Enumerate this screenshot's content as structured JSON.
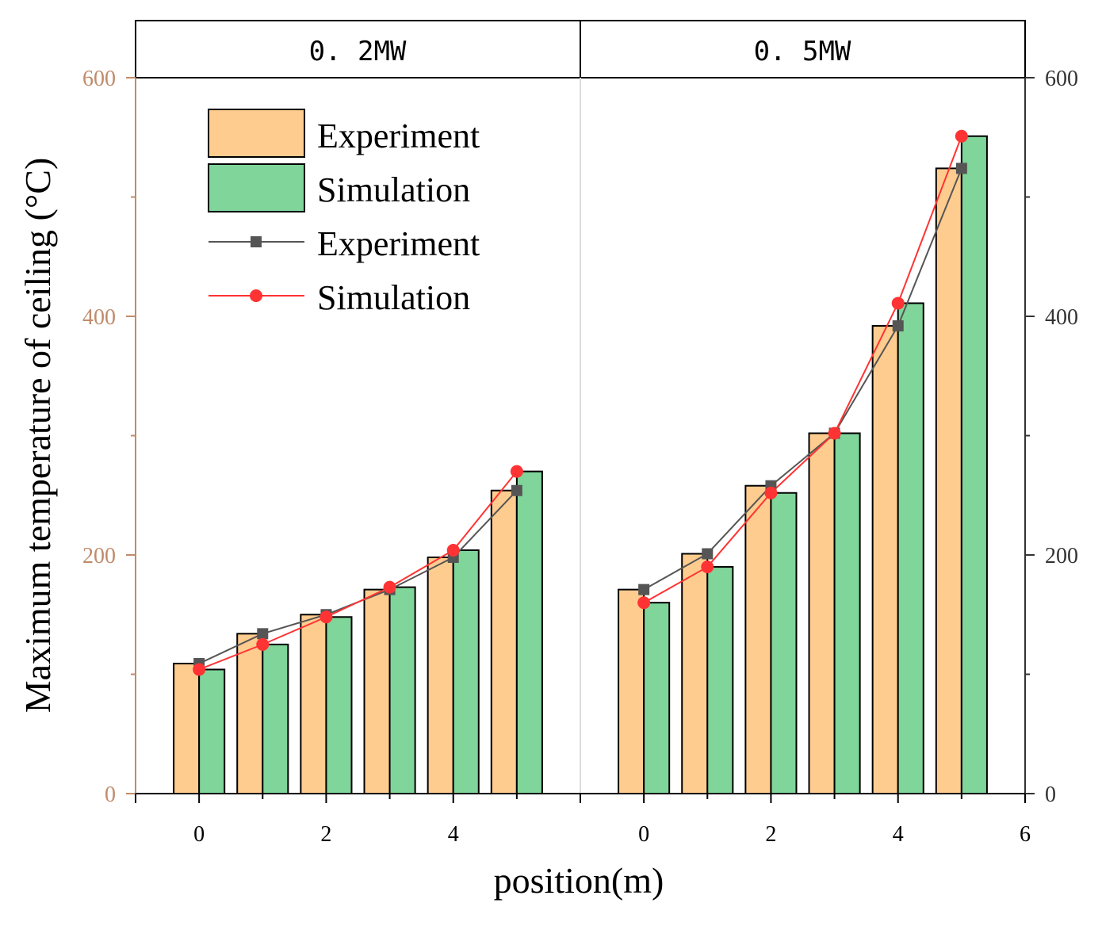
{
  "colors": {
    "experiment_bar": "#FFCC8F",
    "simulation_bar": "#7FD59A",
    "experiment_line": "#555555",
    "simulation_line": "#FF3333",
    "left_axis": "#C08B6A",
    "right_axis": "#333333",
    "frame": "#000000"
  },
  "chart_data": {
    "type": "bar",
    "ylabel": "Maximum temperature of ceiling (°C)",
    "xlabel": "position(m)",
    "ylim": [
      0,
      600
    ],
    "yticks": [
      "0",
      "200",
      "400",
      "600"
    ],
    "right_yticks": [
      "0",
      "200",
      "400",
      "600"
    ],
    "legend": {
      "position": "top-left",
      "entries": [
        {
          "label": "Experiment",
          "kind": "bar",
          "color_key": "experiment_bar"
        },
        {
          "label": "Simulation",
          "kind": "bar",
          "color_key": "simulation_bar"
        },
        {
          "label": "Experiment",
          "kind": "line-square",
          "color_key": "experiment_line"
        },
        {
          "label": "Simulation",
          "kind": "line-circle",
          "color_key": "simulation_line"
        }
      ]
    },
    "panels": [
      {
        "title": "0. 2MW",
        "x": [
          0,
          1,
          2,
          3,
          4,
          5
        ],
        "xlim": [
          -1,
          6
        ],
        "xticks": [
          "0",
          "2",
          "4"
        ],
        "series": [
          {
            "name": "Experiment",
            "values": [
              109,
              134,
              150,
              171,
              198,
              254
            ]
          },
          {
            "name": "Simulation",
            "values": [
              104,
              125,
              148,
              173,
              204,
              270
            ]
          }
        ]
      },
      {
        "title": "0. 5MW",
        "x": [
          0,
          1,
          2,
          3,
          4,
          5
        ],
        "xlim": [
          -1,
          6
        ],
        "xticks": [
          "0",
          "2",
          "4",
          "6"
        ],
        "series": [
          {
            "name": "Experiment",
            "values": [
              171,
              201,
              258,
              302,
              392,
              524
            ]
          },
          {
            "name": "Simulation",
            "values": [
              160,
              190,
              252,
              302,
              411,
              551
            ]
          }
        ]
      }
    ]
  }
}
